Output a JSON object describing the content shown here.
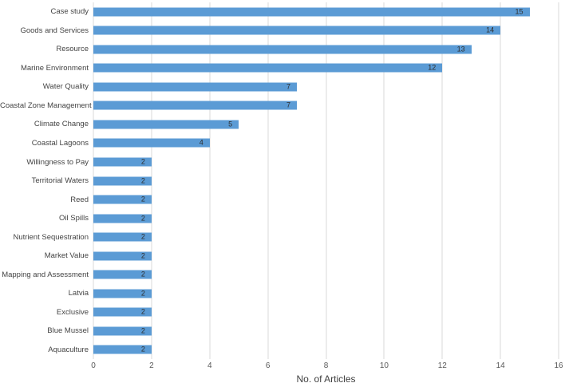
{
  "chart_data": {
    "type": "bar",
    "orientation": "horizontal",
    "title": "",
    "xlabel": "No. of Articles",
    "ylabel": "",
    "xlim": [
      0,
      16
    ],
    "xticks": [
      0,
      2,
      4,
      6,
      8,
      10,
      12,
      14,
      16
    ],
    "grid": true,
    "legend": false,
    "value_labels": "inside-end",
    "categories": [
      "Case study",
      "Goods and Services",
      "Resource",
      "Marine Environment",
      "Water Quality",
      "Coastal Zone Management",
      "Climate Change",
      "Coastal Lagoons",
      "Willingness to Pay",
      "Territorial Waters",
      "Reed",
      "Oil Spills",
      "Nutrient Sequestration",
      "Market Value",
      "Mapping and Assessment",
      "Latvia",
      "Exclusive",
      "Blue Mussel",
      "Aquaculture"
    ],
    "values": [
      15,
      14,
      13,
      12,
      7,
      7,
      5,
      4,
      2,
      2,
      2,
      2,
      2,
      2,
      2,
      2,
      2,
      2,
      2
    ]
  },
  "colors": {
    "bar": "#5B9BD5",
    "gridline": "#D9D9D9",
    "axis_text": "#595959",
    "category_text": "#444444",
    "value_label": "#2E2E2E",
    "background": "#FFFFFF"
  }
}
